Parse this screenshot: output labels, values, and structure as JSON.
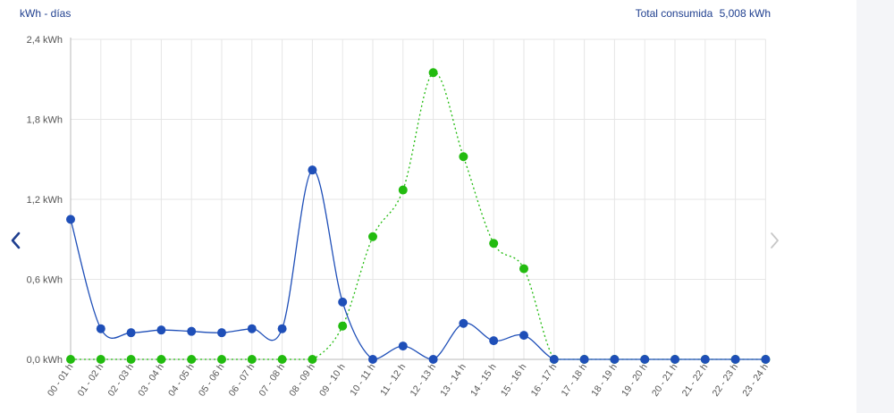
{
  "header": {
    "unit_label": "kWh - días",
    "total_label": "Total consumida",
    "total_value": "5,008 kWh"
  },
  "nav": {
    "prev_icon": "chevron-left-icon",
    "next_icon": "chevron-right-icon"
  },
  "colors": {
    "series_blue": "#1f4fb8",
    "series_green": "#22bb0f",
    "grid": "#e6e6e6",
    "axis": "#b8b8b8",
    "header_text": "#1f3f8f",
    "nav_prev": "#1f3f8f",
    "nav_next": "#c8c8c8",
    "right_panel": "#f4f5f8"
  },
  "chart_data": {
    "type": "line",
    "title": "",
    "xlabel": "",
    "ylabel": "",
    "ylim": [
      0,
      2.4
    ],
    "yticks": [
      0,
      0.6,
      1.2,
      1.8,
      2.4
    ],
    "ytick_labels": [
      "0,0 kWh",
      "0,6 kWh",
      "1,2 kWh",
      "1,8 kWh",
      "2,4 kWh"
    ],
    "grid": true,
    "categories": [
      "00 - 01 h",
      "01 - 02 h",
      "02 - 03 h",
      "03 - 04 h",
      "04 - 05 h",
      "05 - 06 h",
      "06 - 07 h",
      "07 - 08 h",
      "08 - 09 h",
      "09 - 10 h",
      "10 - 11 h",
      "11 - 12 h",
      "12 - 13 h",
      "13 - 14 h",
      "14 - 15 h",
      "15 - 16 h",
      "16 - 17 h",
      "17 - 18 h",
      "18 - 19 h",
      "19 - 20 h",
      "20 - 21 h",
      "21 - 22 h",
      "22 - 23 h",
      "23 - 24 h"
    ],
    "series": [
      {
        "style": "solid",
        "color": "#1f4fb8",
        "values": [
          1.05,
          0.23,
          0.2,
          0.22,
          0.21,
          0.2,
          0.23,
          0.23,
          1.42,
          0.43,
          0.0,
          0.1,
          0.0,
          0.27,
          0.14,
          0.18,
          0.0,
          0.0,
          0.0,
          0.0,
          0.0,
          0.0,
          0.0,
          0.0
        ]
      },
      {
        "style": "dotted",
        "color": "#22bb0f",
        "values": [
          0.0,
          0.0,
          0.0,
          0.0,
          0.0,
          0.0,
          0.0,
          0.0,
          0.0,
          0.25,
          0.92,
          1.27,
          2.15,
          1.52,
          0.87,
          0.68,
          0.0,
          0.0,
          0.0,
          0.0,
          0.0,
          0.0,
          0.0,
          0.0
        ]
      }
    ]
  }
}
